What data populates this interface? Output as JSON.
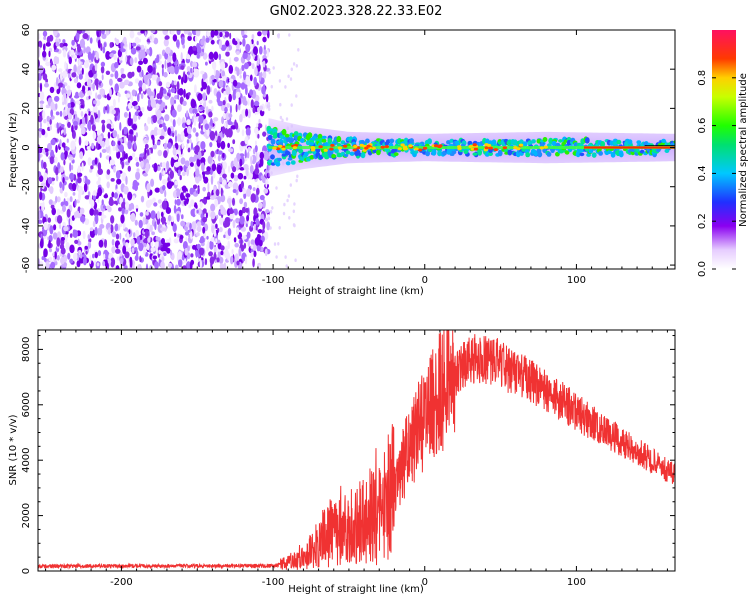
{
  "title": "GN02.2023.328.22.33.E02",
  "colors": {
    "snr_line": "#f03232",
    "axis": "#000000",
    "background": "#ffffff"
  },
  "chart_data": [
    {
      "type": "heatmap",
      "xlabel": "Height of straight line (km)",
      "ylabel": "Frequency (Hz)",
      "xlim": [
        -255,
        165
      ],
      "ylim": [
        -62,
        60
      ],
      "xticks": [
        -200,
        -100,
        0,
        100
      ],
      "yticks": [
        -60,
        -40,
        -20,
        0,
        20,
        40,
        60
      ],
      "colorbar": {
        "label": "Normalized spectral amplitude",
        "range": [
          0.0,
          1.0
        ],
        "ticks": [
          0.0,
          0.2,
          0.4,
          0.6,
          0.8
        ],
        "colormap": "rainbow"
      },
      "noise_region_x": [
        -255,
        -103
      ],
      "signal_center_hz": 0,
      "signal_halfwidth_hz": [
        {
          "x": -103,
          "hz": 12
        },
        {
          "x": -80,
          "hz": 8
        },
        {
          "x": -50,
          "hz": 5
        },
        {
          "x": 0,
          "hz": 4
        },
        {
          "x": 80,
          "hz": 5
        },
        {
          "x": 165,
          "hz": 4
        }
      ]
    },
    {
      "type": "line",
      "xlabel": "Height of straight line (km)",
      "ylabel": "SNR (10 * v/v)",
      "xlim": [
        -255,
        165
      ],
      "ylim": [
        0,
        8700
      ],
      "xticks": [
        -200,
        -100,
        0,
        100
      ],
      "yticks": [
        0,
        2000,
        4000,
        6000,
        8000
      ],
      "series": [
        {
          "x": [
            -255,
            -200,
            -150,
            -100,
            -85,
            -75,
            -65,
            -55,
            -45,
            -35,
            -25,
            -15,
            -5,
            5,
            15,
            25,
            35,
            45,
            55,
            65,
            75,
            85,
            95,
            105,
            115,
            125,
            135,
            145,
            155,
            165
          ],
          "y": [
            170,
            180,
            180,
            190,
            350,
            700,
            1300,
            1500,
            1700,
            1900,
            2500,
            3800,
            5000,
            6000,
            6900,
            7400,
            7700,
            7600,
            7300,
            7000,
            6700,
            6300,
            5950,
            5550,
            5200,
            4850,
            4500,
            4150,
            3800,
            3450
          ]
        }
      ]
    }
  ]
}
